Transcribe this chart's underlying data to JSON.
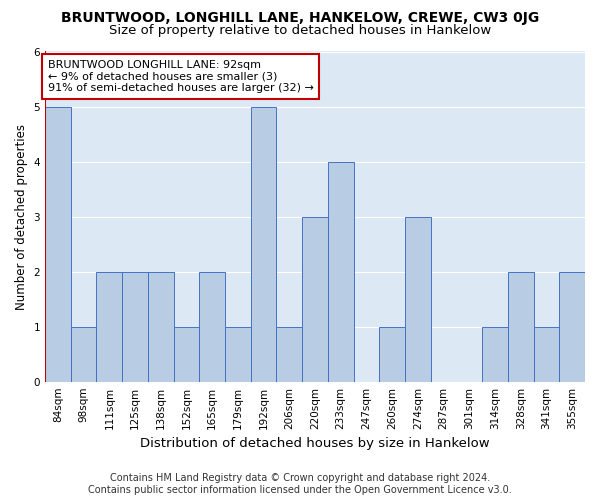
{
  "title": "BRUNTWOOD, LONGHILL LANE, HANKELOW, CREWE, CW3 0JG",
  "subtitle": "Size of property relative to detached houses in Hankelow",
  "xlabel": "Distribution of detached houses by size in Hankelow",
  "ylabel": "Number of detached properties",
  "categories": [
    "84sqm",
    "98sqm",
    "111sqm",
    "125sqm",
    "138sqm",
    "152sqm",
    "165sqm",
    "179sqm",
    "192sqm",
    "206sqm",
    "220sqm",
    "233sqm",
    "247sqm",
    "260sqm",
    "274sqm",
    "287sqm",
    "301sqm",
    "314sqm",
    "328sqm",
    "341sqm",
    "355sqm"
  ],
  "values": [
    5,
    1,
    2,
    2,
    2,
    1,
    2,
    1,
    5,
    1,
    3,
    4,
    0,
    1,
    3,
    0,
    0,
    1,
    2,
    1,
    2
  ],
  "bar_color": "#b8cce4",
  "bar_edge_color": "#4472c4",
  "reference_line_color": "#c00000",
  "reference_line_x": -0.5,
  "annotation_text": "BRUNTWOOD LONGHILL LANE: 92sqm\n← 9% of detached houses are smaller (3)\n91% of semi-detached houses are larger (32) →",
  "annotation_box_color": "#ffffff",
  "annotation_box_edge_color": "#c00000",
  "ylim": [
    0,
    6
  ],
  "yticks": [
    0,
    1,
    2,
    3,
    4,
    5,
    6
  ],
  "footer_line1": "Contains HM Land Registry data © Crown copyright and database right 2024.",
  "footer_line2": "Contains public sector information licensed under the Open Government Licence v3.0.",
  "plot_bg_color": "#dde8f5",
  "fig_bg_color": "#ffffff",
  "title_fontsize": 10,
  "subtitle_fontsize": 9.5,
  "xlabel_fontsize": 9.5,
  "ylabel_fontsize": 8.5,
  "tick_fontsize": 7.5,
  "annotation_fontsize": 8,
  "footer_fontsize": 7
}
